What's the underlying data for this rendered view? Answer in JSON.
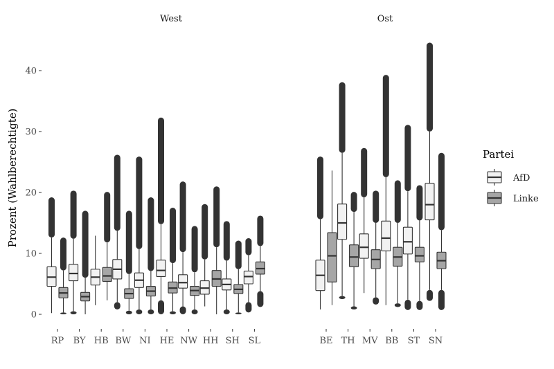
{
  "chart_data": {
    "type": "boxplot",
    "ylabel": "Prozent (Wahlberechtigte)",
    "xlabel": "",
    "ylim": [
      -1.5,
      46
    ],
    "yticks": [
      0,
      10,
      20,
      30,
      40
    ],
    "grid": false,
    "legend": {
      "title": "Partei",
      "position": "right",
      "entries": [
        {
          "name": "AfD",
          "color": "#f2f2f2"
        },
        {
          "name": "Linke",
          "color": "#a6a6a6"
        }
      ]
    },
    "facets": [
      {
        "title": "West",
        "groups": [
          {
            "label": "RP",
            "afd": {
              "lo": 0.2,
              "q1": 4.6,
              "med": 6.1,
              "q3": 7.8,
              "hi": 12.6,
              "outlier_top": 19.2,
              "outlier_bottom": null
            },
            "linke": {
              "lo": 0.3,
              "q1": 2.7,
              "med": 3.5,
              "q3": 4.4,
              "hi": 7.2,
              "outlier_top": 12.6,
              "outlier_bottom": 0.0
            }
          },
          {
            "label": "BY",
            "afd": {
              "lo": 0.5,
              "q1": 5.5,
              "med": 6.7,
              "q3": 8.2,
              "hi": 12.4,
              "outlier_top": 20.3,
              "outlier_bottom": 0.0
            },
            "linke": {
              "lo": 0.0,
              "q1": 2.2,
              "med": 2.9,
              "q3": 3.6,
              "hi": 6.0,
              "outlier_top": 17.0,
              "outlier_bottom": null
            }
          },
          {
            "label": "HB",
            "afd": {
              "lo": 1.5,
              "q1": 4.8,
              "med": 6.1,
              "q3": 7.4,
              "hi": 12.9,
              "outlier_top": null,
              "outlier_bottom": null
            },
            "linke": {
              "lo": 2.3,
              "q1": 5.4,
              "med": 6.3,
              "q3": 7.7,
              "hi": 11.8,
              "outlier_top": 20.1,
              "outlier_bottom": null
            }
          },
          {
            "label": "BW",
            "afd": {
              "lo": 2.0,
              "q1": 5.8,
              "med": 7.4,
              "q3": 9.0,
              "hi": 13.7,
              "outlier_top": 26.2,
              "outlier_bottom": 0.8
            },
            "linke": {
              "lo": 0.6,
              "q1": 2.6,
              "med": 3.4,
              "q3": 4.2,
              "hi": 6.6,
              "outlier_top": 17.0,
              "outlier_bottom": 0.0
            }
          },
          {
            "label": "NI",
            "afd": {
              "lo": 0.8,
              "q1": 4.4,
              "med": 5.6,
              "q3": 6.8,
              "hi": 10.7,
              "outlier_top": 25.9,
              "outlier_bottom": 0.0
            },
            "linke": {
              "lo": 0.8,
              "q1": 3.0,
              "med": 3.8,
              "q3": 4.6,
              "hi": 7.1,
              "outlier_top": 19.2,
              "outlier_bottom": 0.0
            }
          },
          {
            "label": "HE",
            "afd": {
              "lo": 2.3,
              "q1": 6.2,
              "med": 7.2,
              "q3": 8.9,
              "hi": 14.8,
              "outlier_top": 32.3,
              "outlier_bottom": 0.0
            },
            "linke": {
              "lo": 0.5,
              "q1": 3.5,
              "med": 4.3,
              "q3": 5.3,
              "hi": 8.4,
              "outlier_top": 17.5,
              "outlier_bottom": 0.0
            }
          },
          {
            "label": "NW",
            "afd": {
              "lo": 1.3,
              "q1": 4.3,
              "med": 5.2,
              "q3": 6.5,
              "hi": 10.2,
              "outlier_top": 21.8,
              "outlier_bottom": 0.0
            },
            "linke": {
              "lo": 0.8,
              "q1": 3.1,
              "med": 3.9,
              "q3": 4.6,
              "hi": 6.9,
              "outlier_top": 14.5,
              "outlier_bottom": 0.0
            }
          },
          {
            "label": "HH",
            "afd": {
              "lo": 1.3,
              "q1": 3.3,
              "med": 4.3,
              "q3": 5.5,
              "hi": 9.0,
              "outlier_top": 18.1,
              "outlier_bottom": null
            },
            "linke": {
              "lo": 0.0,
              "q1": 4.6,
              "med": 5.8,
              "q3": 7.2,
              "hi": 11.0,
              "outlier_top": 21.0,
              "outlier_bottom": null
            }
          },
          {
            "label": "SH",
            "afd": {
              "lo": 0.8,
              "q1": 4.0,
              "med": 4.9,
              "q3": 5.8,
              "hi": 8.8,
              "outlier_top": 15.3,
              "outlier_bottom": 0.0
            },
            "linke": {
              "lo": 0.3,
              "q1": 3.4,
              "med": 4.1,
              "q3": 4.9,
              "hi": 7.4,
              "outlier_top": 12.1,
              "outlier_bottom": 0.0
            }
          },
          {
            "label": "SL",
            "afd": {
              "lo": 2.0,
              "q1": 5.0,
              "med": 6.2,
              "q3": 7.1,
              "hi": 9.7,
              "outlier_top": 12.5,
              "outlier_bottom": 0.3
            },
            "linke": {
              "lo": 3.8,
              "q1": 6.6,
              "med": 7.5,
              "q3": 8.6,
              "hi": 11.2,
              "outlier_top": 16.2,
              "outlier_bottom": 1.2
            }
          }
        ]
      },
      {
        "title": "Ost",
        "groups": [
          {
            "label": "BE",
            "afd": {
              "lo": 0.8,
              "q1": 3.9,
              "med": 6.4,
              "q3": 8.9,
              "hi": 15.6,
              "outlier_top": 25.9,
              "outlier_bottom": null
            },
            "linke": {
              "lo": 1.5,
              "q1": 5.3,
              "med": 9.6,
              "q3": 13.4,
              "hi": 23.6,
              "outlier_top": null,
              "outlier_bottom": null
            }
          },
          {
            "label": "TH",
            "afd": {
              "lo": 3.0,
              "q1": 12.3,
              "med": 15.0,
              "q3": 18.1,
              "hi": 26.5,
              "outlier_top": 38.1,
              "outlier_bottom": 2.5
            },
            "linke": {
              "lo": 1.3,
              "q1": 7.8,
              "med": 9.4,
              "q3": 11.4,
              "hi": 16.8,
              "outlier_top": 20.1,
              "outlier_bottom": 0.8
            }
          },
          {
            "label": "MV",
            "afd": {
              "lo": 3.5,
              "q1": 9.2,
              "med": 11.0,
              "q3": 13.2,
              "hi": 19.2,
              "outlier_top": 27.3,
              "outlier_bottom": null
            },
            "linke": {
              "lo": 2.8,
              "q1": 7.5,
              "med": 9.0,
              "q3": 10.6,
              "hi": 15.0,
              "outlier_top": 20.3,
              "outlier_bottom": 1.6
            }
          },
          {
            "label": "BB",
            "afd": {
              "lo": 1.5,
              "q1": 10.4,
              "med": 12.5,
              "q3": 15.3,
              "hi": 22.5,
              "outlier_top": 39.3,
              "outlier_bottom": 1.5
            },
            "linke": {
              "lo": 1.8,
              "q1": 7.9,
              "med": 9.4,
              "q3": 11.0,
              "hi": 15.0,
              "outlier_top": 22.0,
              "outlier_bottom": 1.2
            }
          },
          {
            "label": "ST",
            "afd": {
              "lo": 2.4,
              "q1": 9.9,
              "med": 11.9,
              "q3": 14.3,
              "hi": 20.2,
              "outlier_top": 31.1,
              "outlier_bottom": 0.7
            },
            "linke": {
              "lo": 2.2,
              "q1": 8.6,
              "med": 9.6,
              "q3": 11.0,
              "hi": 15.4,
              "outlier_top": 21.2,
              "outlier_bottom": 0.7
            }
          },
          {
            "label": "SN",
            "afd": {
              "lo": 4.0,
              "q1": 15.5,
              "med": 18.0,
              "q3": 21.5,
              "hi": 30.0,
              "outlier_top": 44.6,
              "outlier_bottom": 2.2
            },
            "linke": {
              "lo": 4.0,
              "q1": 7.5,
              "med": 8.8,
              "q3": 10.2,
              "hi": 13.8,
              "outlier_top": 26.5,
              "outlier_bottom": 0.7
            }
          }
        ]
      }
    ]
  }
}
